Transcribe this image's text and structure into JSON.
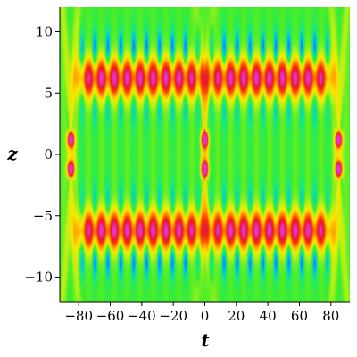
{
  "chart_data": {
    "type": "heatmap",
    "title": "",
    "xlabel": "t",
    "ylabel": "z",
    "xlim": [
      -92,
      92
    ],
    "ylim": [
      -12,
      12
    ],
    "x_ticks": [
      -80,
      -60,
      -40,
      -20,
      0,
      20,
      40,
      60,
      80
    ],
    "x_tick_labels": [
      "−80",
      "−60",
      "−40",
      "−20",
      "0",
      "20",
      "40",
      "60",
      "80"
    ],
    "y_ticks": [
      10,
      5,
      0,
      -5,
      -10
    ],
    "y_tick_labels": [
      "10",
      "5",
      "0",
      "−5",
      "−10"
    ],
    "colormap": [
      "#2e2ee6",
      "#00b4ff",
      "#17e88a",
      "#3ded2e",
      "#b8f015",
      "#ffe600",
      "#ff9a00",
      "#ff3d00",
      "#e0163c",
      "#e533cc"
    ],
    "background_color": "#3ded2e",
    "grid": false,
    "features": {
      "band_centers_z": [
        -6.2,
        6.2
      ],
      "band_spans_t": [
        [
          -80,
          -2
        ],
        [
          2,
          80
        ]
      ],
      "collision_points_t": [
        -85,
        0,
        85
      ],
      "collision_points_z": [
        -1.2,
        1.2
      ],
      "fringe_period_t": 8.2
    }
  }
}
